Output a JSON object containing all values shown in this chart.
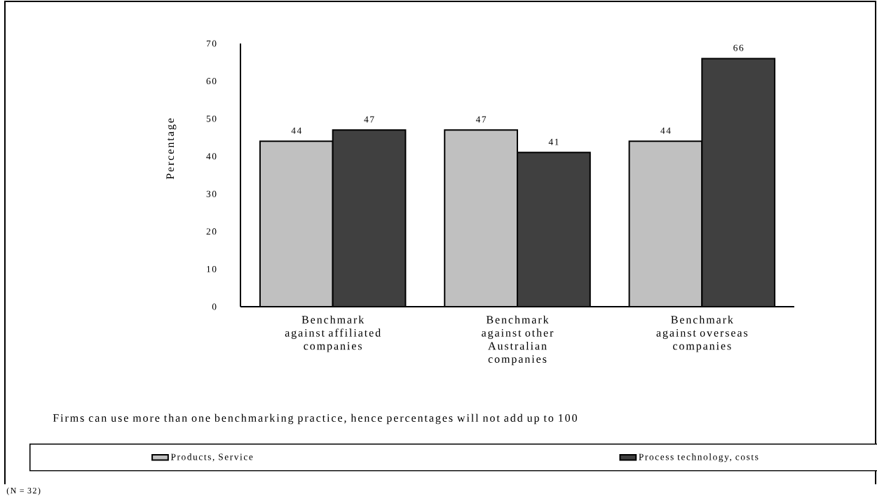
{
  "chart_data": {
    "type": "bar",
    "ylabel": "Percentage",
    "categories": [
      "Benchmark against affiliated companies",
      "Benchmark against other Australian companies",
      "Benchmark against overseas companies"
    ],
    "series": [
      {
        "name": "Products, Service",
        "color": "#c0c0c0",
        "values": [
          44,
          47,
          44
        ]
      },
      {
        "name": "Process technology, costs",
        "color": "#404040",
        "values": [
          47,
          41,
          66
        ]
      }
    ],
    "ylim": [
      0,
      70
    ],
    "yticks": [
      0,
      10,
      20,
      30,
      40,
      50,
      60,
      70
    ],
    "data_labels": true,
    "grid": false,
    "legend": "bottom",
    "annotations": [
      "Firms can use more than one benchmarking practice, hence percentages will not add up to 100",
      "(N = 32)"
    ]
  }
}
